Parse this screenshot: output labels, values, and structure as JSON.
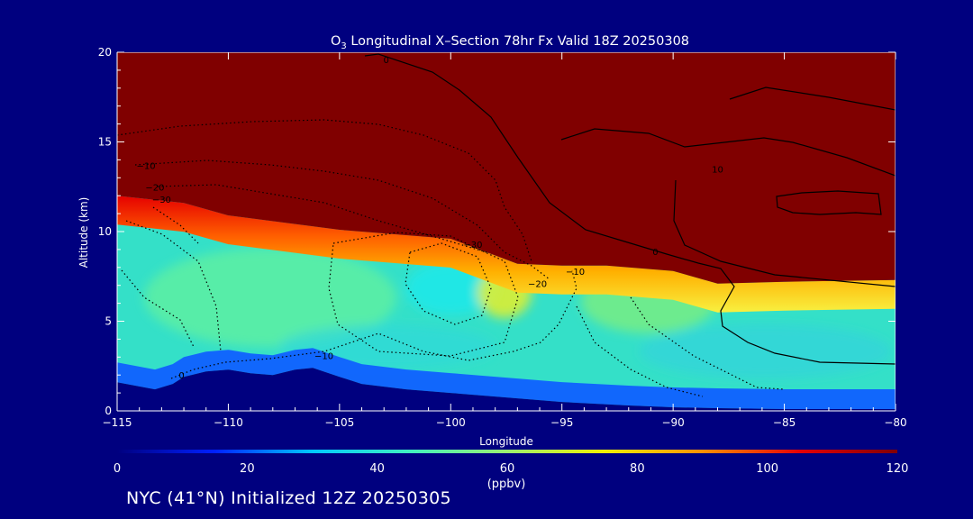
{
  "page": {
    "background": "#00007f",
    "text_color": "#ffffff"
  },
  "footer_text": "NYC (41°N) Initialized 12Z 20250305",
  "chart_data": {
    "type": "heatmap",
    "title_prefix": "O",
    "title_subscript": "3",
    "title_rest": " Longitudinal X–Section 78hr  Fx Valid 18Z 20250308",
    "xlabel": "Longitude",
    "ylabel": "Altitude (km)",
    "xlim": [
      -115,
      -80
    ],
    "ylim": [
      0,
      20
    ],
    "x_ticks": [
      -115,
      -110,
      -105,
      -100,
      -95,
      -90,
      -85,
      -80
    ],
    "x_tick_labels": [
      "−115",
      "−110",
      "−105",
      "−100",
      "−95",
      "−90",
      "−85",
      "−80"
    ],
    "y_ticks": [
      0,
      5,
      10,
      15,
      20
    ],
    "y_tick_labels": [
      "0",
      "5",
      "10",
      "15",
      "20"
    ],
    "colorbar": {
      "min": 0,
      "max": 120,
      "unit": "(ppbv)",
      "ticks": [
        0,
        20,
        40,
        60,
        80,
        100,
        120
      ],
      "tick_labels": [
        "0",
        "20",
        "40",
        "60",
        "80",
        "100",
        "120"
      ],
      "colors": [
        "#00007f",
        "#0020ff",
        "#00c8ff",
        "#40f0c0",
        "#9cf070",
        "#f0f000",
        "#ff9000",
        "#e60000",
        "#800000"
      ]
    },
    "colors": {
      "stratosphere": "#800000",
      "terrain": "#00007f",
      "contour": "#000000"
    },
    "ozone_profile": {
      "x": [
        -115,
        -112,
        -110,
        -105,
        -100,
        -97,
        -95,
        -93,
        -90,
        -88,
        -85,
        -80
      ],
      "tropopause_km": [
        12.0,
        11.6,
        10.9,
        10.1,
        9.6,
        8.2,
        8.1,
        8.1,
        7.8,
        7.1,
        7.2,
        7.3
      ]
    },
    "terrain": {
      "x": [
        -115,
        -113.3,
        -112.5,
        -112,
        -111,
        -110,
        -109,
        -108,
        -107,
        -106.2,
        -105,
        -104,
        -102,
        -100,
        -98,
        -95,
        -92,
        -90,
        -88,
        -85,
        -82,
        -80
      ],
      "z": [
        1.6,
        1.2,
        1.5,
        1.9,
        2.2,
        2.3,
        2.1,
        2.0,
        2.3,
        2.4,
        1.9,
        1.5,
        1.2,
        1.0,
        0.8,
        0.5,
        0.3,
        0.2,
        0.15,
        0.1,
        0.1,
        0.1
      ]
    },
    "contour_labels": [
      {
        "text": "0",
        "x": -102.9,
        "y": 19.6
      },
      {
        "text": "10",
        "x": -88.0,
        "y": 13.5
      },
      {
        "text": "0",
        "x": -90.8,
        "y": 8.9
      },
      {
        "text": "−10",
        "x": -113.7,
        "y": 13.7
      },
      {
        "text": "−20",
        "x": -113.3,
        "y": 12.5
      },
      {
        "text": "−30",
        "x": -113.0,
        "y": 11.8
      },
      {
        "text": "−30",
        "x": -99.0,
        "y": 9.3
      },
      {
        "text": "−20",
        "x": -96.1,
        "y": 7.1
      },
      {
        "text": "−10",
        "x": -94.4,
        "y": 7.8
      },
      {
        "text": "−10",
        "x": -105.7,
        "y": 3.1
      },
      {
        "text": "0",
        "x": -112.1,
        "y": 2.0
      }
    ]
  }
}
